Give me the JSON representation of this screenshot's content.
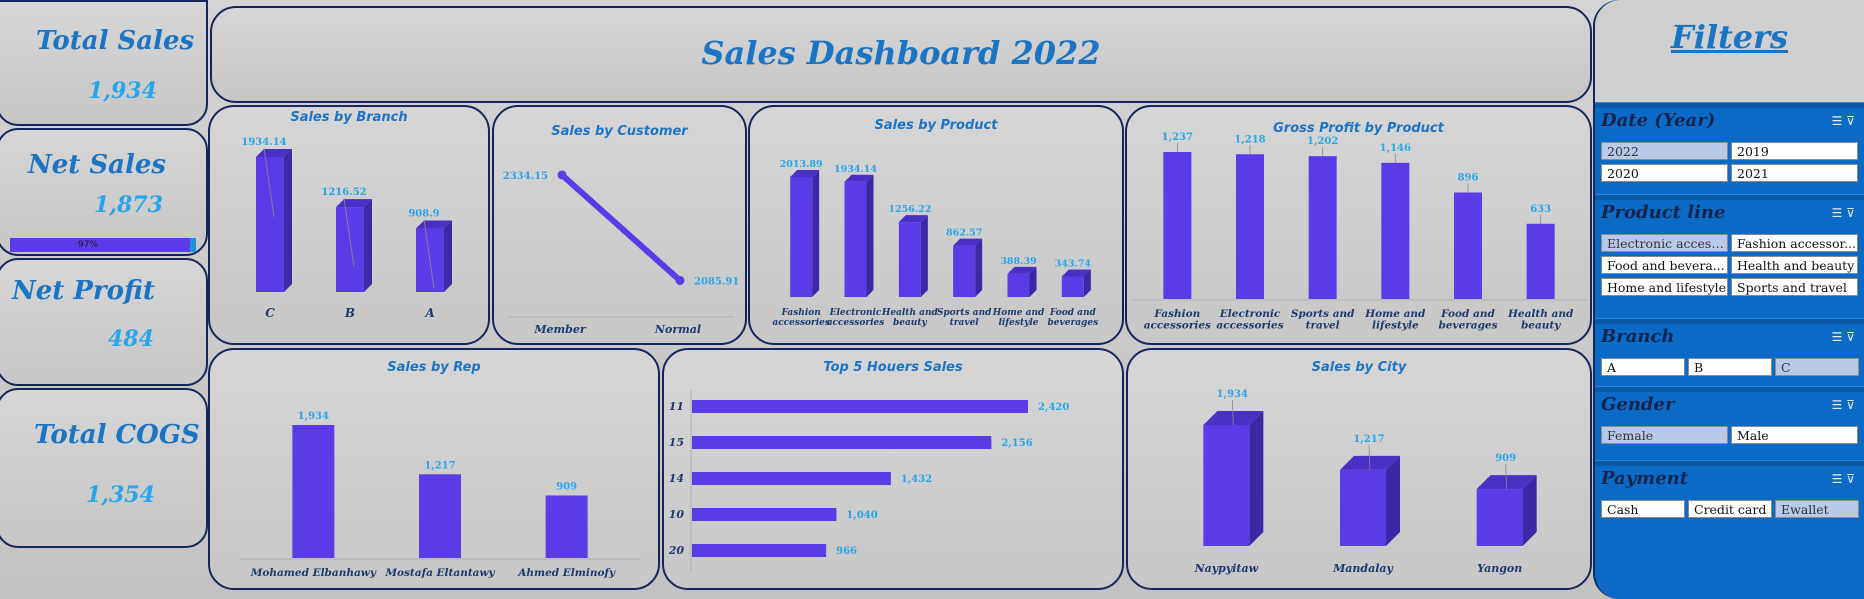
{
  "kpis": {
    "total_sales": {
      "label": "Total Sales",
      "value": "1,934"
    },
    "net_sales": {
      "label": "Net Sales",
      "value": "1,873",
      "progress_label": "97%",
      "progress": 0.97
    },
    "net_profit": {
      "label": "Net Profit",
      "value": "484"
    },
    "total_cogs": {
      "label": "Total COGS",
      "value": "1,354"
    }
  },
  "dashboard_title": "Sales Dashboard 2022",
  "colors": {
    "bar": "#5a3be6",
    "bar_side": "#3c27a5",
    "label": "#27a6ea",
    "title": "#1c74c4",
    "border": "#15275a"
  },
  "chart_data": [
    {
      "type": "bar",
      "title": "Sales by Branch",
      "categories": [
        "C",
        "B",
        "A"
      ],
      "values": [
        1934.14,
        1216.52,
        908.9
      ],
      "labels": [
        "1934.14",
        "1216.52",
        "908.9"
      ]
    },
    {
      "type": "line",
      "title": "Sales by Customer",
      "categories": [
        "Member",
        "Normal"
      ],
      "values": [
        2334.15,
        2085.91
      ],
      "labels": [
        "2334.15",
        "2085.91"
      ]
    },
    {
      "type": "bar",
      "title": "Sales by Product",
      "categories": [
        "Fashion accessories",
        "Electronic accessories",
        "Health and beauty",
        "Sports and travel",
        "Home and lifestyle",
        "Food and beverages"
      ],
      "values": [
        2013.89,
        1934.14,
        1256.22,
        862.57,
        388.39,
        343.74
      ],
      "labels": [
        "2013.89",
        "1934.14",
        "1256.22",
        "862.57",
        "388.39",
        "343.74"
      ]
    },
    {
      "type": "bar",
      "title": "Gross Profit by Product",
      "categories": [
        "Fashion accessories",
        "Electronic accessories",
        "Sports and travel",
        "Home and lifestyle",
        "Food and beverages",
        "Health and beauty"
      ],
      "values": [
        1237,
        1218,
        1202,
        1146,
        896,
        633
      ],
      "labels": [
        "1,237",
        "1,218",
        "1,202",
        "1,146",
        "896",
        "633"
      ]
    },
    {
      "type": "bar",
      "title": "Sales by Rep",
      "categories": [
        "Mohamed Elbanhawy",
        "Mostafa Eltantawy",
        "Ahmed Elminofy"
      ],
      "values": [
        1934,
        1217,
        909
      ],
      "labels": [
        "1,934",
        "1,217",
        "909"
      ]
    },
    {
      "type": "bar",
      "orientation": "horizontal",
      "title": "Top 5 Houers Sales",
      "categories": [
        "11",
        "15",
        "14",
        "10",
        "20"
      ],
      "values": [
        2420,
        2156,
        1432,
        1040,
        966
      ],
      "labels": [
        "2,420",
        "2,156",
        "1,432",
        "1,040",
        "966"
      ]
    },
    {
      "type": "bar",
      "title": "Sales by City",
      "categories": [
        "Naypyitaw",
        "Mandalay",
        "Yangon"
      ],
      "values": [
        1934,
        1217,
        909
      ],
      "labels": [
        "1,934",
        "1,217",
        "909"
      ]
    }
  ],
  "filters": {
    "title": "Filters",
    "slicers": [
      {
        "title": "Date (Year)",
        "items": [
          {
            "label": "2022",
            "selected": true
          },
          {
            "label": "2019",
            "selected": false
          },
          {
            "label": "2020",
            "selected": false
          },
          {
            "label": "2021",
            "selected": false
          }
        ]
      },
      {
        "title": "Product line",
        "items": [
          {
            "label": "Electronic access...",
            "selected": true
          },
          {
            "label": "Fashion accessor...",
            "selected": false
          },
          {
            "label": "Food and bevera...",
            "selected": false
          },
          {
            "label": "Health and beauty",
            "selected": false
          },
          {
            "label": "Home and lifestyle",
            "selected": false
          },
          {
            "label": "Sports and travel",
            "selected": false
          }
        ]
      },
      {
        "title": "Branch",
        "items": [
          {
            "label": "A",
            "selected": false
          },
          {
            "label": "B",
            "selected": false
          },
          {
            "label": "C",
            "selected": true
          }
        ]
      },
      {
        "title": "Gender",
        "items": [
          {
            "label": "Female",
            "selected": true
          },
          {
            "label": "Male",
            "selected": false
          }
        ]
      },
      {
        "title": "Payment",
        "items": [
          {
            "label": "Cash",
            "selected": false
          },
          {
            "label": "Credit card",
            "selected": false
          },
          {
            "label": "Ewallet",
            "selected": true
          }
        ]
      }
    ]
  }
}
